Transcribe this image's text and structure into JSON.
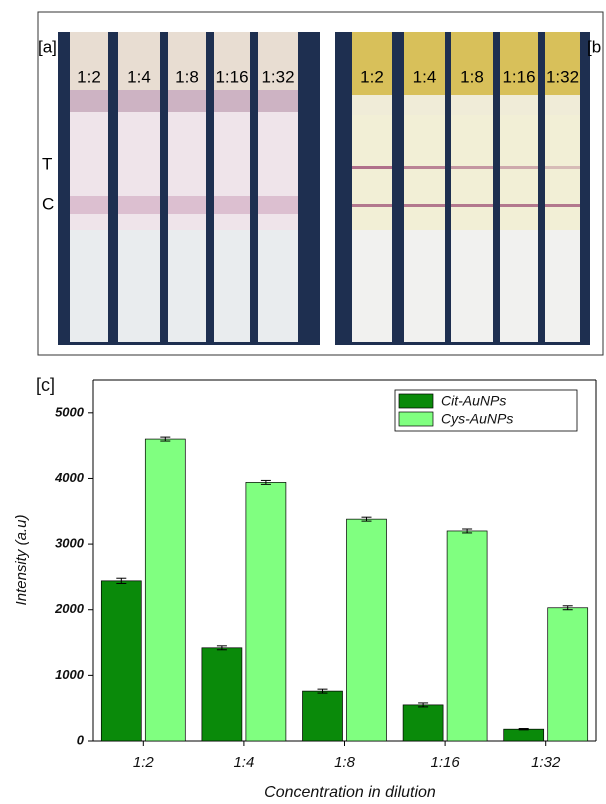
{
  "panels": {
    "a": {
      "label": "[a]",
      "dilutions": [
        "1:2",
        "1:4",
        "1:8",
        "1:16",
        "1:32"
      ],
      "test_line": "T",
      "control_line": "C"
    },
    "b": {
      "label": "[b",
      "dilutions": [
        "1:2",
        "1:4",
        "1:8",
        "1:16",
        "1:32"
      ]
    }
  },
  "chart_data": {
    "type": "bar",
    "panel_label": "[c]",
    "x_label": "Concentration in dilution",
    "y_label": "Intensity (a.u)",
    "categories": [
      "1:2",
      "1:4",
      "1:8",
      "1:16",
      "1:32"
    ],
    "series": [
      {
        "name": "Cit-AuNPs",
        "color": "#0a8a0a",
        "values": [
          2440,
          1420,
          760,
          550,
          180
        ],
        "errors": [
          40,
          30,
          30,
          30,
          10
        ]
      },
      {
        "name": "Cys-AuNPs",
        "color": "#80ff80",
        "values": [
          4600,
          3940,
          3380,
          3200,
          2030
        ],
        "errors": [
          30,
          30,
          30,
          30,
          30
        ]
      }
    ],
    "ylim": [
      0,
      5500
    ],
    "yticks": [
      0,
      1000,
      2000,
      3000,
      4000,
      5000
    ],
    "legend": "top-right",
    "grid": false
  }
}
